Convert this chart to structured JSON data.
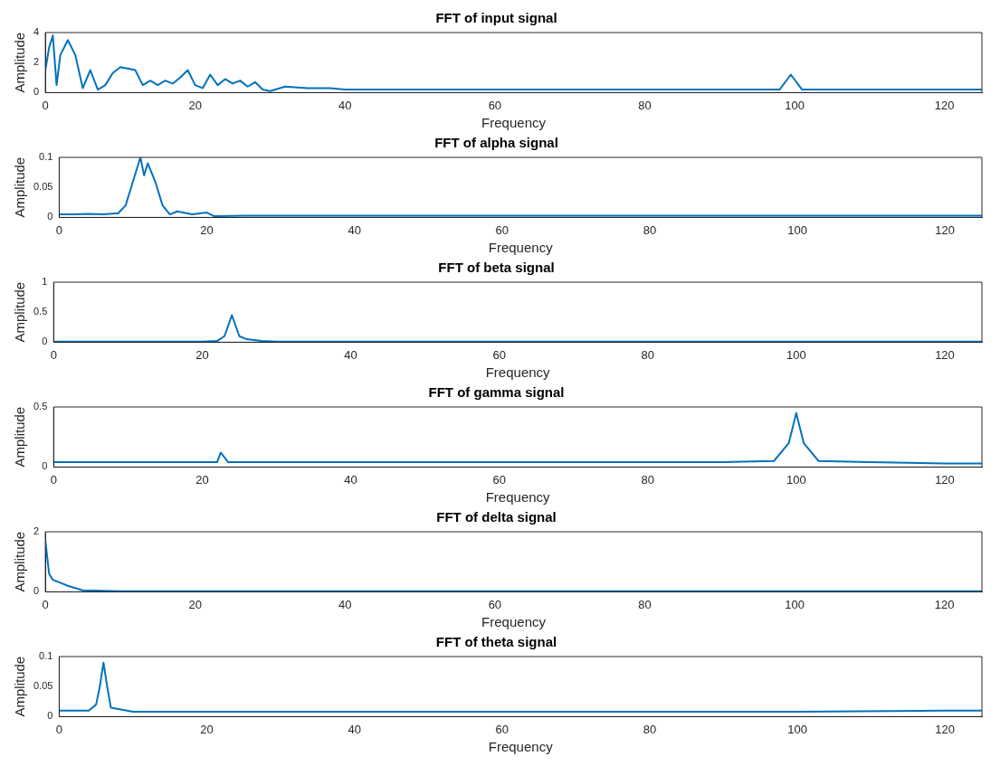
{
  "chart_data": [
    {
      "type": "line",
      "title": "FFT of input signal",
      "xlabel": "Frequency",
      "ylabel": "Amplitude",
      "xlim": [
        0,
        125
      ],
      "xticks": [
        0,
        20,
        40,
        60,
        80,
        100,
        120
      ],
      "ylim": [
        0,
        4
      ],
      "yticks": [
        0,
        2,
        4
      ],
      "x": [
        0,
        0.5,
        1,
        1.5,
        2,
        3,
        4,
        5,
        6,
        7,
        8,
        9,
        10,
        11,
        12,
        13,
        14,
        15,
        16,
        17,
        18,
        19,
        20,
        21,
        22,
        23,
        24,
        25,
        26,
        27,
        28,
        29,
        30,
        32,
        35,
        38,
        40,
        45,
        50,
        55,
        60,
        65,
        70,
        75,
        80,
        85,
        90,
        95,
        98,
        99.5,
        101,
        105,
        110,
        115,
        120,
        125
      ],
      "series": [
        {
          "color": "#0072bd",
          "values": [
            1.5,
            3,
            3.8,
            0.5,
            2.5,
            3.5,
            2.5,
            0.3,
            1.5,
            0.2,
            0.5,
            1.3,
            1.7,
            1.6,
            1.5,
            0.5,
            0.8,
            0.5,
            0.8,
            0.6,
            1,
            1.5,
            0.5,
            0.3,
            1.2,
            0.5,
            0.9,
            0.6,
            0.8,
            0.4,
            0.7,
            0.2,
            0.1,
            0.4,
            0.3,
            0.3,
            0.2,
            0.2,
            0.2,
            0.2,
            0.2,
            0.2,
            0.2,
            0.2,
            0.2,
            0.2,
            0.2,
            0.2,
            0.2,
            1.2,
            0.2,
            0.2,
            0.2,
            0.2,
            0.2,
            0.2
          ]
        }
      ]
    },
    {
      "type": "line",
      "title": "FFT of alpha signal",
      "xlabel": "Frequency",
      "ylabel": "Amplitude",
      "xlim": [
        0,
        125
      ],
      "xticks": [
        0,
        20,
        40,
        60,
        80,
        100,
        120
      ],
      "ylim": [
        0,
        0.1
      ],
      "yticks": [
        0,
        0.05,
        0.1
      ],
      "x": [
        0,
        2,
        4,
        6,
        8,
        9,
        10,
        11,
        11.5,
        12,
        13,
        14,
        15,
        16,
        18,
        20,
        21,
        25,
        30,
        40,
        50,
        60,
        70,
        80,
        90,
        100,
        110,
        120,
        125
      ],
      "series": [
        {
          "color": "#0072bd",
          "values": [
            0.005,
            0.005,
            0.006,
            0.005,
            0.007,
            0.02,
            0.06,
            0.1,
            0.07,
            0.09,
            0.06,
            0.02,
            0.005,
            0.01,
            0.005,
            0.008,
            0.002,
            0.003,
            0.003,
            0.003,
            0.003,
            0.003,
            0.003,
            0.003,
            0.003,
            0.003,
            0.003,
            0.003,
            0.003
          ]
        }
      ]
    },
    {
      "type": "line",
      "title": "FFT of beta signal",
      "xlabel": "Frequency",
      "ylabel": "Amplitude",
      "xlim": [
        0,
        125
      ],
      "xticks": [
        0,
        20,
        40,
        60,
        80,
        100,
        120
      ],
      "ylim": [
        0,
        1
      ],
      "yticks": [
        0,
        0.5,
        1
      ],
      "x": [
        0,
        10,
        20,
        22,
        23,
        24,
        25,
        26,
        28,
        30,
        40,
        50,
        60,
        70,
        80,
        90,
        100,
        110,
        120,
        125
      ],
      "series": [
        {
          "color": "#0072bd",
          "values": [
            0.01,
            0.01,
            0.01,
            0.02,
            0.1,
            0.45,
            0.1,
            0.05,
            0.02,
            0.01,
            0.01,
            0.01,
            0.01,
            0.01,
            0.01,
            0.01,
            0.01,
            0.01,
            0.01,
            0.01
          ]
        }
      ]
    },
    {
      "type": "line",
      "title": "FFT of gamma signal",
      "xlabel": "Frequency",
      "ylabel": "Amplitude",
      "xlim": [
        0,
        125
      ],
      "xticks": [
        0,
        20,
        40,
        60,
        80,
        100,
        120
      ],
      "ylim": [
        0,
        0.5
      ],
      "yticks": [
        0,
        0.5
      ],
      "x": [
        0,
        10,
        20,
        22,
        22.5,
        23.5,
        30,
        40,
        50,
        60,
        70,
        80,
        90,
        97,
        99,
        100,
        101,
        103,
        110,
        120,
        125
      ],
      "series": [
        {
          "color": "#0072bd",
          "values": [
            0.04,
            0.04,
            0.04,
            0.04,
            0.12,
            0.04,
            0.04,
            0.04,
            0.04,
            0.04,
            0.04,
            0.04,
            0.04,
            0.05,
            0.2,
            0.45,
            0.2,
            0.05,
            0.04,
            0.03,
            0.03
          ]
        }
      ]
    },
    {
      "type": "line",
      "title": "FFT of delta signal",
      "xlabel": "Frequency",
      "ylabel": "Amplitude",
      "xlim": [
        0,
        125
      ],
      "xticks": [
        0,
        20,
        40,
        60,
        80,
        100,
        120
      ],
      "ylim": [
        0,
        2
      ],
      "yticks": [
        0,
        2
      ],
      "x": [
        0,
        0.5,
        1,
        2,
        3,
        5,
        10,
        20,
        40,
        60,
        80,
        100,
        120,
        125
      ],
      "series": [
        {
          "color": "#0072bd",
          "values": [
            1.7,
            0.6,
            0.4,
            0.3,
            0.2,
            0.05,
            0.02,
            0.02,
            0.02,
            0.02,
            0.02,
            0.02,
            0.02,
            0.02
          ]
        }
      ]
    },
    {
      "type": "line",
      "title": "FFT of theta signal",
      "xlabel": "Frequency",
      "ylabel": "Amplitude",
      "xlim": [
        0,
        125
      ],
      "xticks": [
        0,
        20,
        40,
        60,
        80,
        100,
        120
      ],
      "ylim": [
        0,
        0.1
      ],
      "yticks": [
        0,
        0.05,
        0.1
      ],
      "x": [
        0,
        2,
        4,
        5,
        5.5,
        6,
        6.5,
        7,
        10,
        20,
        40,
        60,
        80,
        100,
        120,
        125
      ],
      "series": [
        {
          "color": "#0072bd",
          "values": [
            0.01,
            0.01,
            0.01,
            0.02,
            0.05,
            0.09,
            0.05,
            0.015,
            0.008,
            0.008,
            0.008,
            0.008,
            0.008,
            0.008,
            0.01,
            0.01
          ]
        }
      ]
    }
  ]
}
